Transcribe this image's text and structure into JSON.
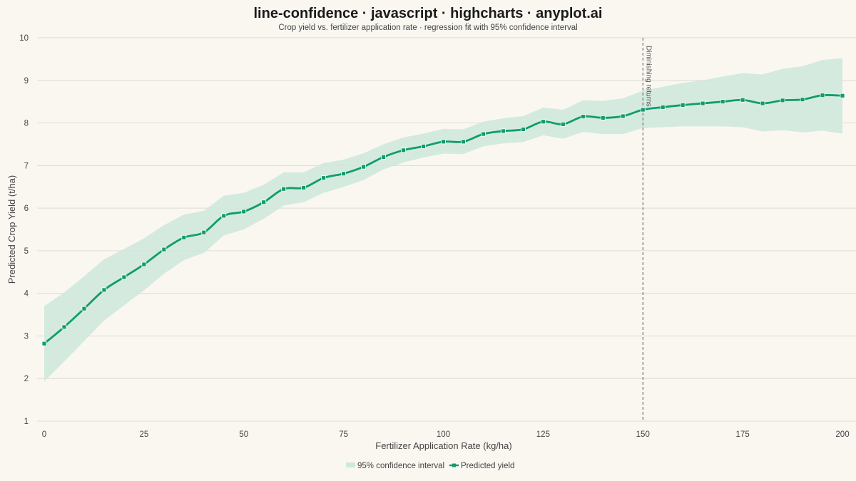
{
  "chart_data": {
    "type": "line",
    "title": "line-confidence · javascript · highcharts · anyplot.ai",
    "subtitle": "Crop yield vs. fertilizer application rate · regression fit with 95% confidence interval",
    "xlabel": "Fertilizer Application Rate (kg/ha)",
    "ylabel": "Predicted Crop Yield (t/ha)",
    "xlim": [
      0,
      200
    ],
    "ylim": [
      1,
      10
    ],
    "x_ticks": [
      0,
      25,
      50,
      75,
      100,
      125,
      150,
      175,
      200
    ],
    "y_ticks": [
      1,
      2,
      3,
      4,
      5,
      6,
      7,
      8,
      9,
      10
    ],
    "grid": true,
    "legend_position": "bottom-center",
    "colors": {
      "line": "#0f9c6e",
      "band": "#cfe8dc",
      "background": "#faf7f1",
      "grid": "#dedbd3"
    },
    "series": [
      {
        "name": "Predicted yield",
        "kind": "line",
        "x": [
          0,
          5,
          10,
          15,
          20,
          25,
          30,
          35,
          40,
          45,
          50,
          55,
          60,
          65,
          70,
          75,
          80,
          85,
          90,
          95,
          100,
          105,
          110,
          115,
          120,
          125,
          130,
          135,
          140,
          145,
          150,
          155,
          160,
          165,
          170,
          175,
          180,
          185,
          190,
          195,
          200
        ],
        "values": [
          2.82,
          3.21,
          3.64,
          4.08,
          4.38,
          4.68,
          5.03,
          5.31,
          5.43,
          5.82,
          5.92,
          6.14,
          6.45,
          6.48,
          6.71,
          6.81,
          6.97,
          7.2,
          7.36,
          7.45,
          7.56,
          7.56,
          7.74,
          7.81,
          7.85,
          8.03,
          7.97,
          8.15,
          8.12,
          8.16,
          8.31,
          8.37,
          8.42,
          8.46,
          8.5,
          8.54,
          8.46,
          8.53,
          8.55,
          8.65,
          8.64
        ]
      },
      {
        "name": "95% confidence interval",
        "kind": "arearange",
        "x": [
          0,
          5,
          10,
          15,
          20,
          25,
          30,
          35,
          40,
          45,
          50,
          55,
          60,
          65,
          70,
          75,
          80,
          85,
          90,
          95,
          100,
          105,
          110,
          115,
          120,
          125,
          130,
          135,
          140,
          145,
          150,
          155,
          160,
          165,
          170,
          175,
          180,
          185,
          190,
          195,
          200
        ],
        "low": [
          1.93,
          2.4,
          2.88,
          3.36,
          3.72,
          4.07,
          4.46,
          4.78,
          4.95,
          5.36,
          5.5,
          5.75,
          6.06,
          6.14,
          6.36,
          6.5,
          6.66,
          6.91,
          7.07,
          7.19,
          7.28,
          7.27,
          7.45,
          7.52,
          7.55,
          7.71,
          7.63,
          7.79,
          7.74,
          7.74,
          7.88,
          7.9,
          7.92,
          7.92,
          7.92,
          7.9,
          7.8,
          7.83,
          7.78,
          7.82,
          7.75
        ],
        "high": [
          3.7,
          4.02,
          4.4,
          4.8,
          5.04,
          5.29,
          5.6,
          5.85,
          5.94,
          6.29,
          6.36,
          6.55,
          6.84,
          6.84,
          7.06,
          7.14,
          7.29,
          7.5,
          7.66,
          7.75,
          7.86,
          7.85,
          8.03,
          8.11,
          8.16,
          8.36,
          8.31,
          8.53,
          8.52,
          8.58,
          8.76,
          8.85,
          8.94,
          9.0,
          9.09,
          9.17,
          9.14,
          9.27,
          9.33,
          9.48,
          9.52
        ]
      }
    ],
    "annotations": [
      {
        "type": "vertical-line",
        "x": 150,
        "label": "Diminishing returns"
      }
    ]
  }
}
